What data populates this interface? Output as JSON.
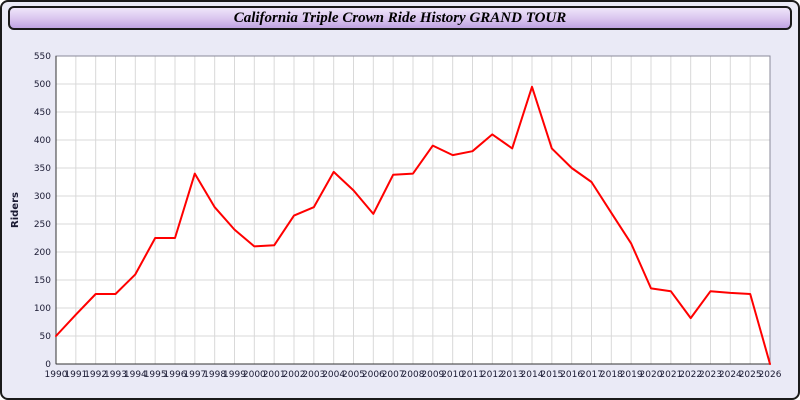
{
  "header": {
    "title": "California Triple Crown Ride History GRAND TOUR"
  },
  "chart_data": {
    "type": "line",
    "title": "California Triple Crown Ride History GRAND TOUR",
    "xlabel": "",
    "ylabel": "Riders",
    "ylim": [
      0,
      550
    ],
    "ytick_step": 50,
    "grid": true,
    "legend": "none",
    "line_color": "#ff0000",
    "grid_color": "#d9d9d9",
    "plot_bg": "#ffffff",
    "x": [
      1990,
      1991,
      1992,
      1993,
      1994,
      1995,
      1996,
      1997,
      1998,
      1999,
      2000,
      2001,
      2002,
      2003,
      2004,
      2005,
      2006,
      2007,
      2008,
      2009,
      2010,
      2011,
      2012,
      2013,
      2014,
      2015,
      2016,
      2017,
      2018,
      2019,
      2020,
      2021,
      2022,
      2023,
      2024,
      2025,
      2026
    ],
    "values": [
      50,
      88,
      125,
      125,
      160,
      225,
      225,
      340,
      280,
      240,
      210,
      212,
      265,
      280,
      343,
      310,
      268,
      338,
      340,
      390,
      373,
      380,
      410,
      385,
      495,
      385,
      350,
      325,
      270,
      215,
      135,
      130,
      82,
      130,
      127,
      125,
      0
    ]
  }
}
